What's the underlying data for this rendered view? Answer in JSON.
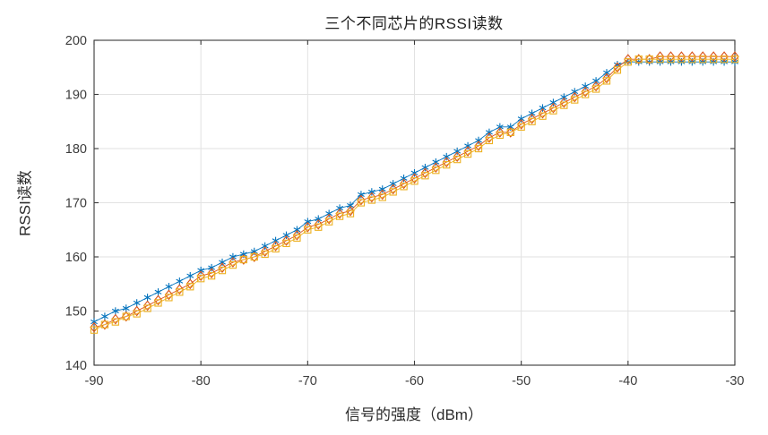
{
  "chart_data": {
    "type": "line",
    "title": "三个不同芯片的RSSI读数",
    "xlabel": "信号的强度（dBm）",
    "ylabel": "RSSI读数",
    "xlim": [
      -90,
      -30
    ],
    "ylim": [
      140,
      200
    ],
    "xticks": [
      -90,
      -80,
      -70,
      -60,
      -50,
      -40,
      -30
    ],
    "yticks": [
      140,
      150,
      160,
      170,
      180,
      190,
      200
    ],
    "grid": true,
    "legend": "none",
    "colors": {
      "axis": "#3a3a3a",
      "gridline": "#e2e2e2",
      "series1": "#0072BD",
      "series2": "#D95319",
      "series3": "#EDB120"
    },
    "x": [
      -90,
      -89,
      -88,
      -87,
      -86,
      -85,
      -84,
      -83,
      -82,
      -81,
      -80,
      -79,
      -78,
      -77,
      -76,
      -75,
      -74,
      -73,
      -72,
      -71,
      -70,
      -69,
      -68,
      -67,
      -66,
      -65,
      -64,
      -63,
      -62,
      -61,
      -60,
      -59,
      -58,
      -57,
      -56,
      -55,
      -54,
      -53,
      -52,
      -51,
      -50,
      -49,
      -48,
      -47,
      -46,
      -45,
      -44,
      -43,
      -42,
      -41,
      -40,
      -39,
      -38,
      -37,
      -36,
      -35,
      -34,
      -33,
      -32,
      -31,
      -30
    ],
    "series": [
      {
        "name": "series-1",
        "marker": "asterisk",
        "color": "#0072BD",
        "values": [
          148,
          149,
          150,
          150.5,
          151.5,
          152.5,
          153.5,
          154.5,
          155.5,
          156.5,
          157.5,
          158,
          159,
          160,
          160.5,
          161,
          162,
          163,
          164,
          165,
          166.5,
          167,
          168,
          169,
          169.5,
          171.5,
          172,
          172.5,
          173.5,
          174.5,
          175.5,
          176.5,
          177.5,
          178.5,
          179.5,
          180.5,
          181.5,
          183,
          184,
          184,
          185.5,
          186.5,
          187.5,
          188.5,
          189.5,
          190.5,
          191.5,
          192.5,
          194,
          195.5,
          196,
          196,
          196,
          196,
          196,
          196,
          196,
          196,
          196,
          196,
          196
        ]
      },
      {
        "name": "series-2",
        "marker": "diamond",
        "color": "#D95319",
        "values": [
          147,
          147.5,
          148.5,
          149,
          150,
          151,
          152,
          153,
          154,
          155,
          156.5,
          157,
          158,
          159,
          159.5,
          160,
          161,
          162,
          163,
          164,
          165.5,
          166,
          167,
          168,
          168.5,
          170.5,
          171,
          171.5,
          172.5,
          173.5,
          174.5,
          175.5,
          176.5,
          177.5,
          178.5,
          179.5,
          180.5,
          182,
          183,
          183,
          184.5,
          185.5,
          186.5,
          187.5,
          188.5,
          189.5,
          190.5,
          191.5,
          193,
          195,
          196.5,
          196.5,
          196.5,
          197,
          197,
          197,
          197,
          197,
          197,
          197,
          197
        ]
      },
      {
        "name": "series-3",
        "marker": "square",
        "color": "#EDB120",
        "values": [
          146.5,
          147.5,
          148,
          149,
          149.5,
          150.5,
          151.5,
          152.5,
          153.5,
          154.5,
          156,
          156.5,
          157.5,
          158.5,
          159.5,
          160,
          160.5,
          161.5,
          162.5,
          163.5,
          165,
          165.5,
          166.5,
          167.5,
          168,
          170,
          170.5,
          171,
          172,
          173,
          174,
          175,
          176,
          177,
          178,
          179,
          180,
          181.5,
          182.5,
          183,
          184,
          185,
          186,
          187,
          188,
          189,
          190,
          191,
          192.5,
          194.5,
          196,
          196.5,
          196.5,
          196.5,
          196.5,
          196.5,
          196.5,
          196.5,
          196.5,
          196.5,
          196.5
        ]
      }
    ]
  }
}
